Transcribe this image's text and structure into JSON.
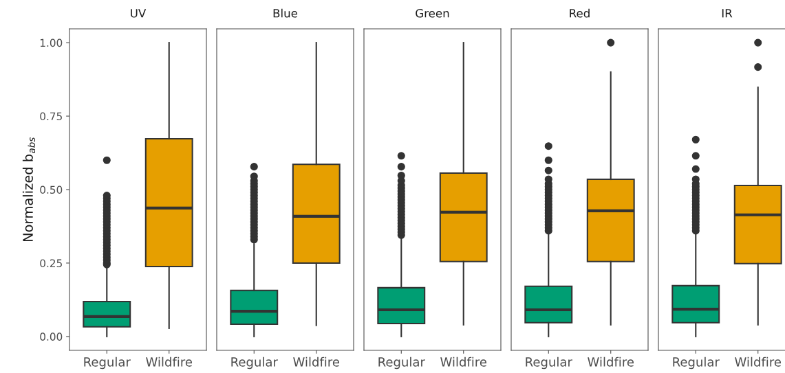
{
  "chart_data": [
    {
      "type": "box",
      "title": "UV",
      "ylabel": "Normalized b$_{abs}$",
      "categories": [
        "Regular",
        "Wildfire"
      ],
      "colors": [
        "#009e73",
        "#e69f00"
      ],
      "ylim": [
        -0.047,
        1.047
      ],
      "yticks": [
        {
          "value": 0,
          "label": "0.00"
        },
        {
          "value": 0.25,
          "label": "0.25"
        },
        {
          "value": 0.5,
          "label": "0.50"
        },
        {
          "value": 0.75,
          "label": "0.75"
        },
        {
          "value": 1,
          "label": "1.00"
        }
      ],
      "boxes": [
        {
          "low": 0.0,
          "q1": 0.033,
          "median": 0.068,
          "q3": 0.119,
          "high": 0.234,
          "outliers": [
            0.245,
            0.25,
            0.26,
            0.27,
            0.28,
            0.29,
            0.3,
            0.31,
            0.32,
            0.33,
            0.34,
            0.35,
            0.36,
            0.37,
            0.38,
            0.39,
            0.4,
            0.41,
            0.42,
            0.43,
            0.44,
            0.45,
            0.46,
            0.47,
            0.48,
            0.6
          ]
        },
        {
          "low": 0.028,
          "q1": 0.238,
          "median": 0.437,
          "q3": 0.673,
          "high": 1.0
        }
      ]
    },
    {
      "type": "box",
      "title": "Blue",
      "categories": [
        "Regular",
        "Wildfire"
      ],
      "colors": [
        "#009e73",
        "#e69f00"
      ],
      "ylim": [
        -0.047,
        1.047
      ],
      "tick_labels": "x",
      "boxes": [
        {
          "low": 0.0,
          "q1": 0.042,
          "median": 0.086,
          "q3": 0.157,
          "high": 0.315,
          "outliers": [
            0.33,
            0.34,
            0.35,
            0.36,
            0.37,
            0.38,
            0.39,
            0.4,
            0.41,
            0.42,
            0.43,
            0.44,
            0.45,
            0.46,
            0.47,
            0.48,
            0.49,
            0.5,
            0.51,
            0.52,
            0.53,
            0.545,
            0.578
          ]
        },
        {
          "low": 0.038,
          "q1": 0.25,
          "median": 0.409,
          "q3": 0.586,
          "high": 1.0
        }
      ]
    },
    {
      "type": "box",
      "title": "Green",
      "categories": [
        "Regular",
        "Wildfire"
      ],
      "colors": [
        "#009e73",
        "#e69f00"
      ],
      "ylim": [
        -0.047,
        1.047
      ],
      "tick_labels": "x",
      "boxes": [
        {
          "low": 0.0,
          "q1": 0.044,
          "median": 0.091,
          "q3": 0.166,
          "high": 0.334,
          "outliers": [
            0.345,
            0.355,
            0.365,
            0.375,
            0.385,
            0.395,
            0.405,
            0.415,
            0.425,
            0.435,
            0.445,
            0.455,
            0.465,
            0.475,
            0.485,
            0.495,
            0.505,
            0.515,
            0.53,
            0.548,
            0.578,
            0.615
          ]
        },
        {
          "low": 0.04,
          "q1": 0.255,
          "median": 0.423,
          "q3": 0.556,
          "high": 1.0
        }
      ]
    },
    {
      "type": "box",
      "title": "Red",
      "categories": [
        "Regular",
        "Wildfire"
      ],
      "colors": [
        "#009e73",
        "#e69f00"
      ],
      "ylim": [
        -0.047,
        1.047
      ],
      "tick_labels": "x",
      "boxes": [
        {
          "low": 0.0,
          "q1": 0.047,
          "median": 0.091,
          "q3": 0.171,
          "high": 0.346,
          "outliers": [
            0.36,
            0.37,
            0.38,
            0.39,
            0.4,
            0.41,
            0.42,
            0.43,
            0.44,
            0.45,
            0.46,
            0.47,
            0.48,
            0.49,
            0.5,
            0.51,
            0.52,
            0.535,
            0.565,
            0.6,
            0.648
          ]
        },
        {
          "low": 0.04,
          "q1": 0.255,
          "median": 0.428,
          "q3": 0.535,
          "high": 0.9,
          "outliers": [
            1.0
          ]
        }
      ]
    },
    {
      "type": "box",
      "title": "IR",
      "categories": [
        "Regular",
        "Wildfire"
      ],
      "colors": [
        "#009e73",
        "#e69f00"
      ],
      "ylim": [
        -0.047,
        1.047
      ],
      "tick_labels": "x",
      "boxes": [
        {
          "low": 0.0,
          "q1": 0.047,
          "median": 0.093,
          "q3": 0.173,
          "high": 0.35,
          "outliers": [
            0.36,
            0.37,
            0.38,
            0.39,
            0.4,
            0.41,
            0.42,
            0.43,
            0.44,
            0.45,
            0.46,
            0.47,
            0.48,
            0.49,
            0.5,
            0.51,
            0.52,
            0.535,
            0.57,
            0.615,
            0.67
          ]
        },
        {
          "low": 0.04,
          "q1": 0.248,
          "median": 0.414,
          "q3": 0.514,
          "high": 0.848,
          "outliers": [
            0.917,
            1.0
          ]
        }
      ]
    }
  ]
}
